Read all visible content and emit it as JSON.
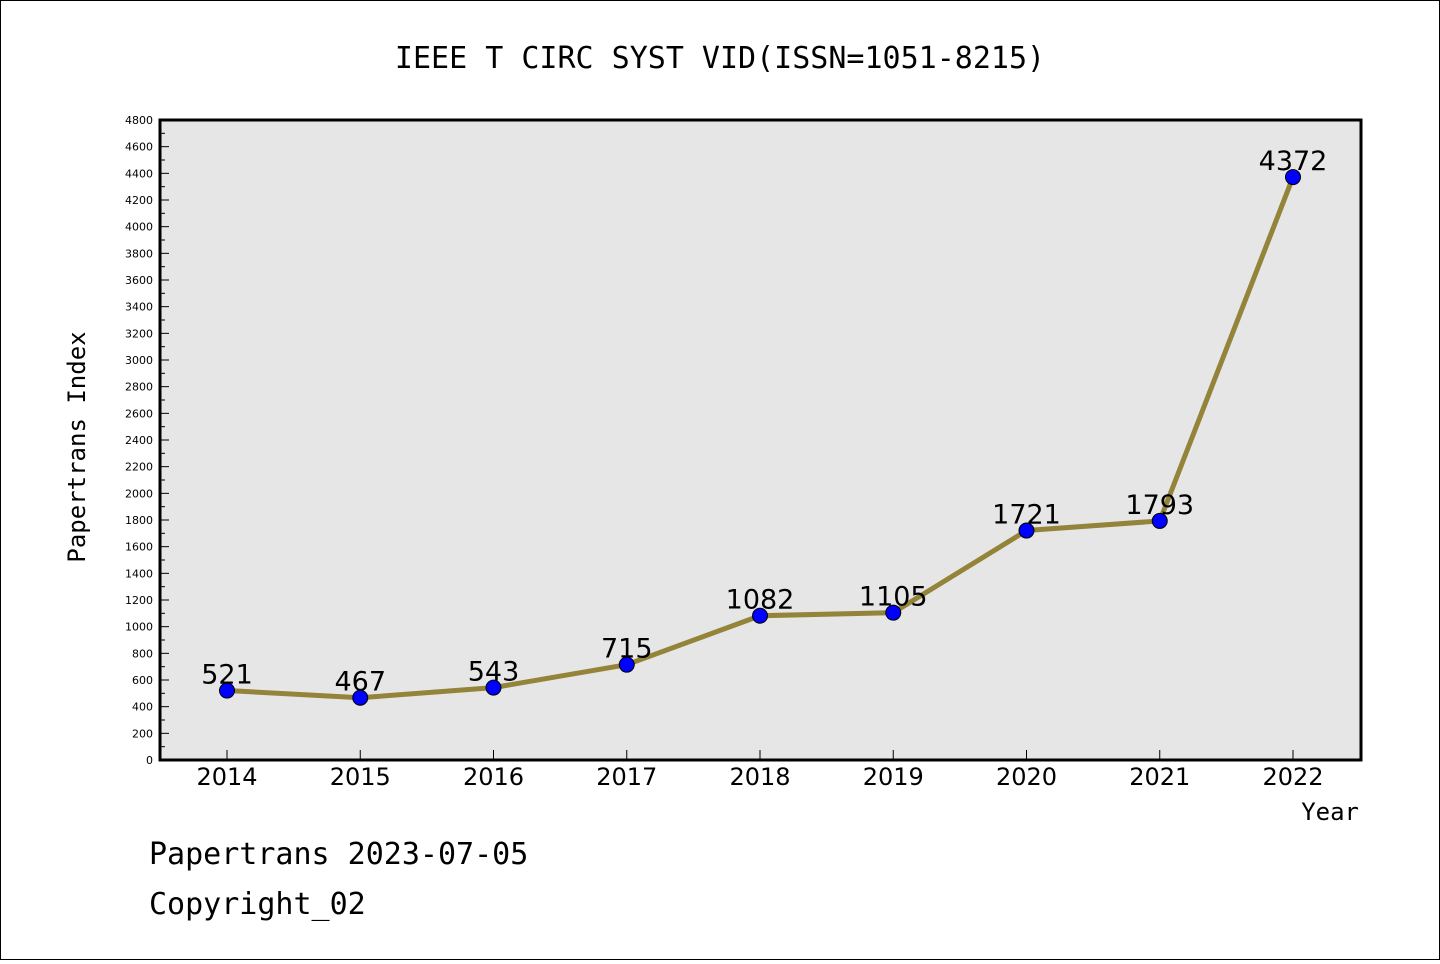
{
  "chart_data": {
    "type": "line",
    "title": "IEEE T CIRC SYST VID(ISSN=1051-8215)",
    "xlabel": "Year",
    "ylabel": "Papertrans Index",
    "categories": [
      "2014",
      "2015",
      "2016",
      "2017",
      "2018",
      "2019",
      "2020",
      "2021",
      "2022"
    ],
    "series": [
      {
        "values": [
          521,
          467,
          543,
          715,
          1082,
          1105,
          1721,
          1793,
          4372
        ]
      }
    ],
    "data_labels": [
      "521",
      "467",
      "543",
      "715",
      "1082",
      "1105",
      "1721",
      "1793",
      "4372"
    ],
    "ylim": [
      0,
      4800
    ],
    "y_ticks": [
      0,
      200,
      400,
      600,
      800,
      1000,
      1200,
      1400,
      1600,
      1800,
      2000,
      2200,
      2400,
      2600,
      2800,
      3000,
      3200,
      3400,
      3600,
      3800,
      4000,
      4200,
      4400,
      4600,
      4800
    ],
    "grid": false,
    "legend": "none",
    "colors": {
      "plot_background": "#e6e6e6",
      "line": "#948439",
      "marker": "#0000ff"
    }
  },
  "footer": {
    "line1": "Papertrans 2023-07-05",
    "line2": "Copyright_02"
  }
}
